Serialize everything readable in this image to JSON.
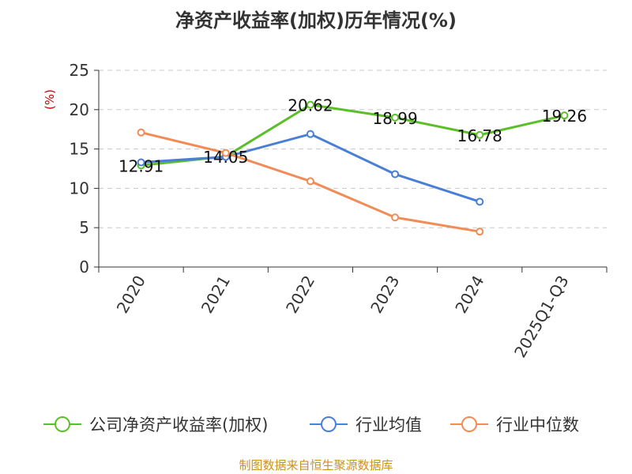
{
  "chart_data": {
    "type": "line",
    "title": "净资产收益率(加权)历年情况(%)",
    "ylabel": "(%)",
    "xlabel": "",
    "ylim": [
      0,
      25
    ],
    "yticks": [
      0,
      5,
      10,
      15,
      20,
      25
    ],
    "grid": true,
    "legend_position": "bottom",
    "categories": [
      "2020",
      "2021",
      "2022",
      "2023",
      "2024",
      "2025Q1-Q3"
    ],
    "series": [
      {
        "name": "公司净资产收益率(加权)",
        "color": "#5cbf2a",
        "values": [
          12.91,
          14.05,
          20.62,
          18.99,
          16.78,
          19.26
        ],
        "show_labels": true
      },
      {
        "name": "行业均值",
        "color": "#4a7fd6",
        "values": [
          13.3,
          14.0,
          16.9,
          11.8,
          8.3,
          null
        ],
        "show_labels": false
      },
      {
        "name": "行业中位数",
        "color": "#f28c57",
        "values": [
          17.1,
          14.5,
          10.9,
          6.3,
          4.5,
          null
        ],
        "show_labels": false
      }
    ]
  },
  "footer": {
    "source": "制图数据来自恒生聚源数据库",
    "source_color": "#c8921f"
  },
  "axis": {
    "ylabel_color": "#cc0000"
  }
}
